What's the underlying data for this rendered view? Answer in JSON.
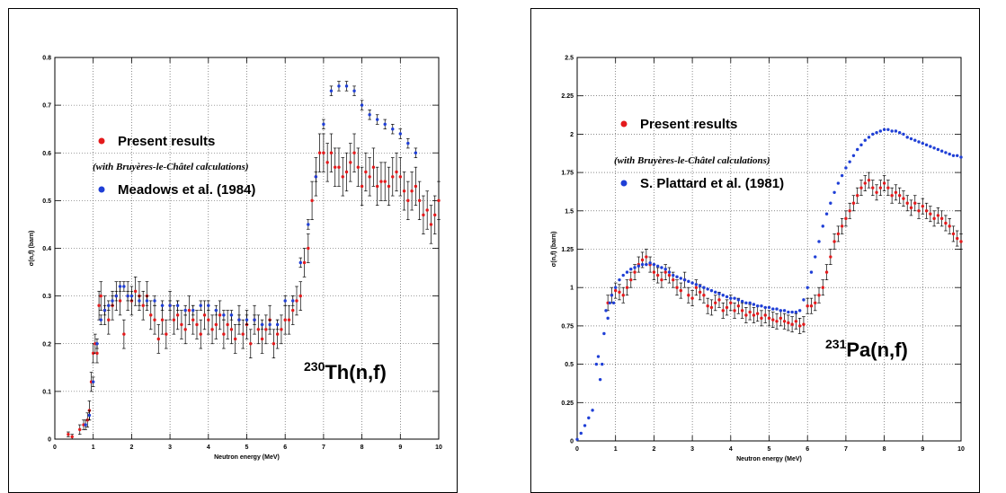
{
  "chart_data": [
    {
      "type": "scatter",
      "title": "",
      "reaction": {
        "mass": "230",
        "label": "Th(n,f)"
      },
      "xlabel": "Neutron energy (MeV)",
      "ylabel": "σ(n,f) (barn)",
      "xlim": [
        0,
        10
      ],
      "ylim": [
        0,
        0.8
      ],
      "xticks": [
        "0",
        "1",
        "2",
        "3",
        "4",
        "5",
        "6",
        "7",
        "8",
        "9",
        "10"
      ],
      "yticks": [
        "0",
        "0.1",
        "0.2",
        "0.3",
        "0.4",
        "0.5",
        "0.6",
        "0.7",
        "0.8"
      ],
      "grid": true,
      "legend_position": "middle-left",
      "legend_note": "(with Bruyères-le-Châtel calculations)",
      "series": [
        {
          "name": "Present results",
          "color": "#e41a1c",
          "x": [
            0.35,
            0.45,
            0.65,
            0.75,
            0.85,
            0.9,
            0.95,
            1.0,
            1.05,
            1.1,
            1.15,
            1.2,
            1.3,
            1.4,
            1.5,
            1.6,
            1.7,
            1.8,
            1.9,
            2.0,
            2.1,
            2.2,
            2.3,
            2.4,
            2.5,
            2.6,
            2.7,
            2.8,
            2.9,
            3.0,
            3.1,
            3.2,
            3.3,
            3.4,
            3.5,
            3.6,
            3.7,
            3.8,
            3.9,
            4.0,
            4.1,
            4.2,
            4.3,
            4.4,
            4.5,
            4.6,
            4.7,
            4.8,
            4.9,
            5.0,
            5.1,
            5.2,
            5.3,
            5.4,
            5.5,
            5.6,
            5.7,
            5.8,
            5.9,
            6.0,
            6.1,
            6.2,
            6.3,
            6.4,
            6.5,
            6.6,
            6.7,
            6.8,
            6.9,
            7.0,
            7.1,
            7.2,
            7.3,
            7.4,
            7.5,
            7.6,
            7.7,
            7.8,
            7.9,
            8.0,
            8.1,
            8.2,
            8.3,
            8.4,
            8.5,
            8.6,
            8.7,
            8.8,
            8.9,
            9.0,
            9.1,
            9.2,
            9.3,
            9.4,
            9.5,
            9.6,
            9.7,
            9.8,
            9.9,
            10.0
          ],
          "y": [
            0.01,
            0.005,
            0.02,
            0.03,
            0.04,
            0.06,
            0.12,
            0.18,
            0.2,
            0.18,
            0.28,
            0.3,
            0.27,
            0.25,
            0.28,
            0.3,
            0.29,
            0.22,
            0.3,
            0.29,
            0.31,
            0.3,
            0.28,
            0.3,
            0.26,
            0.25,
            0.21,
            0.25,
            0.22,
            0.28,
            0.25,
            0.26,
            0.24,
            0.23,
            0.27,
            0.25,
            0.24,
            0.22,
            0.26,
            0.25,
            0.23,
            0.24,
            0.26,
            0.22,
            0.24,
            0.23,
            0.21,
            0.25,
            0.22,
            0.24,
            0.2,
            0.25,
            0.23,
            0.21,
            0.23,
            0.25,
            0.2,
            0.22,
            0.23,
            0.25,
            0.25,
            0.27,
            0.29,
            0.3,
            0.37,
            0.4,
            0.5,
            0.55,
            0.6,
            0.6,
            0.58,
            0.6,
            0.57,
            0.57,
            0.55,
            0.56,
            0.58,
            0.6,
            0.57,
            0.53,
            0.56,
            0.55,
            0.57,
            0.53,
            0.54,
            0.54,
            0.53,
            0.55,
            0.56,
            0.55,
            0.52,
            0.5,
            0.52,
            0.53,
            0.5,
            0.47,
            0.48,
            0.45,
            0.47,
            0.5
          ],
          "err": [
            0.005,
            0.005,
            0.01,
            0.01,
            0.015,
            0.02,
            0.02,
            0.02,
            0.02,
            0.02,
            0.03,
            0.03,
            0.03,
            0.03,
            0.03,
            0.03,
            0.03,
            0.03,
            0.03,
            0.03,
            0.03,
            0.03,
            0.03,
            0.03,
            0.03,
            0.03,
            0.03,
            0.03,
            0.03,
            0.03,
            0.03,
            0.03,
            0.03,
            0.03,
            0.03,
            0.03,
            0.03,
            0.03,
            0.03,
            0.03,
            0.03,
            0.03,
            0.03,
            0.03,
            0.03,
            0.03,
            0.03,
            0.03,
            0.03,
            0.03,
            0.03,
            0.03,
            0.03,
            0.03,
            0.03,
            0.03,
            0.03,
            0.03,
            0.03,
            0.03,
            0.03,
            0.03,
            0.03,
            0.03,
            0.03,
            0.03,
            0.04,
            0.04,
            0.04,
            0.04,
            0.04,
            0.04,
            0.04,
            0.04,
            0.04,
            0.04,
            0.04,
            0.04,
            0.04,
            0.04,
            0.04,
            0.04,
            0.04,
            0.04,
            0.04,
            0.04,
            0.04,
            0.04,
            0.04,
            0.04,
            0.04,
            0.04,
            0.04,
            0.04,
            0.04,
            0.04,
            0.04,
            0.04,
            0.04,
            0.04
          ]
        },
        {
          "name": "Meadows et al. (1984)",
          "color": "#1f3fd6",
          "x": [
            0.8,
            0.9,
            1.0,
            1.1,
            1.2,
            1.3,
            1.4,
            1.5,
            1.6,
            1.7,
            1.8,
            1.9,
            2.0,
            2.2,
            2.4,
            2.6,
            2.8,
            3.0,
            3.2,
            3.4,
            3.6,
            3.8,
            4.0,
            4.2,
            4.4,
            4.6,
            4.8,
            5.0,
            5.2,
            5.4,
            5.6,
            5.8,
            6.0,
            6.2,
            6.4,
            6.6,
            6.8,
            7.0,
            7.2,
            7.4,
            7.6,
            7.8,
            8.0,
            8.2,
            8.4,
            8.6,
            8.8,
            9.0,
            9.2,
            9.4
          ],
          "y": [
            0.03,
            0.05,
            0.12,
            0.2,
            0.25,
            0.27,
            0.28,
            0.29,
            0.3,
            0.32,
            0.32,
            0.3,
            0.3,
            0.29,
            0.29,
            0.29,
            0.28,
            0.28,
            0.28,
            0.27,
            0.27,
            0.28,
            0.28,
            0.27,
            0.26,
            0.26,
            0.25,
            0.25,
            0.25,
            0.24,
            0.24,
            0.24,
            0.29,
            0.29,
            0.37,
            0.45,
            0.55,
            0.66,
            0.73,
            0.74,
            0.74,
            0.73,
            0.7,
            0.68,
            0.67,
            0.66,
            0.65,
            0.64,
            0.62,
            0.6
          ],
          "err": [
            0.01,
            0.01,
            0.01,
            0.01,
            0.01,
            0.01,
            0.01,
            0.01,
            0.01,
            0.01,
            0.01,
            0.01,
            0.01,
            0.01,
            0.01,
            0.01,
            0.01,
            0.01,
            0.01,
            0.01,
            0.01,
            0.01,
            0.01,
            0.01,
            0.01,
            0.01,
            0.01,
            0.01,
            0.01,
            0.01,
            0.01,
            0.01,
            0.01,
            0.01,
            0.01,
            0.01,
            0.01,
            0.01,
            0.01,
            0.01,
            0.01,
            0.01,
            0.01,
            0.01,
            0.01,
            0.01,
            0.01,
            0.01,
            0.01,
            0.01
          ]
        }
      ]
    },
    {
      "type": "scatter",
      "title": "",
      "reaction": {
        "mass": "231",
        "label": "Pa(n,f)"
      },
      "xlabel": "Neutron energy (MeV)",
      "ylabel": "σ(n,f) (barn)",
      "xlim": [
        0,
        10
      ],
      "ylim": [
        0,
        2.5
      ],
      "xticks": [
        "0",
        "1",
        "2",
        "3",
        "4",
        "5",
        "6",
        "7",
        "8",
        "9",
        "10"
      ],
      "yticks": [
        "0",
        "0.25",
        "0.5",
        "0.75",
        "1",
        "1.25",
        "1.5",
        "1.75",
        "2",
        "2.25",
        "2.5"
      ],
      "grid": true,
      "legend_position": "upper-left",
      "legend_note": "(with Bruyères-le-Châtel calculations)",
      "series": [
        {
          "name": "Present results",
          "color": "#e41a1c",
          "x": [
            0.8,
            0.9,
            1.0,
            1.1,
            1.2,
            1.3,
            1.4,
            1.5,
            1.6,
            1.7,
            1.8,
            1.9,
            2.0,
            2.1,
            2.2,
            2.3,
            2.4,
            2.5,
            2.6,
            2.7,
            2.8,
            2.9,
            3.0,
            3.1,
            3.2,
            3.3,
            3.4,
            3.5,
            3.6,
            3.7,
            3.8,
            3.9,
            4.0,
            4.1,
            4.2,
            4.3,
            4.4,
            4.5,
            4.6,
            4.7,
            4.8,
            4.9,
            5.0,
            5.1,
            5.2,
            5.3,
            5.4,
            5.5,
            5.6,
            5.7,
            5.8,
            5.9,
            6.0,
            6.1,
            6.2,
            6.3,
            6.4,
            6.5,
            6.6,
            6.7,
            6.8,
            6.9,
            7.0,
            7.1,
            7.2,
            7.3,
            7.4,
            7.5,
            7.6,
            7.7,
            7.8,
            7.9,
            8.0,
            8.1,
            8.2,
            8.3,
            8.4,
            8.5,
            8.6,
            8.7,
            8.8,
            8.9,
            9.0,
            9.1,
            9.2,
            9.3,
            9.4,
            9.5,
            9.6,
            9.7,
            9.8,
            9.9,
            10.0
          ],
          "y": [
            0.9,
            0.95,
            0.98,
            0.97,
            0.95,
            1.0,
            1.05,
            1.1,
            1.15,
            1.18,
            1.2,
            1.15,
            1.1,
            1.08,
            1.05,
            1.1,
            1.08,
            1.05,
            1.0,
            0.98,
            1.05,
            0.95,
            0.93,
            1.0,
            0.97,
            0.95,
            0.88,
            0.87,
            0.9,
            0.92,
            0.85,
            0.87,
            0.9,
            0.85,
            0.88,
            0.85,
            0.82,
            0.84,
            0.82,
            0.83,
            0.8,
            0.82,
            0.8,
            0.79,
            0.78,
            0.8,
            0.78,
            0.77,
            0.76,
            0.78,
            0.75,
            0.76,
            0.88,
            0.88,
            0.9,
            0.95,
            1.0,
            1.1,
            1.2,
            1.3,
            1.35,
            1.4,
            1.45,
            1.5,
            1.55,
            1.6,
            1.65,
            1.68,
            1.7,
            1.65,
            1.62,
            1.65,
            1.68,
            1.65,
            1.6,
            1.62,
            1.6,
            1.58,
            1.55,
            1.52,
            1.55,
            1.5,
            1.53,
            1.5,
            1.48,
            1.45,
            1.47,
            1.45,
            1.42,
            1.4,
            1.35,
            1.32,
            1.3
          ],
          "err": [
            0.05,
            0.05,
            0.05,
            0.05,
            0.05,
            0.05,
            0.05,
            0.05,
            0.05,
            0.05,
            0.05,
            0.05,
            0.05,
            0.05,
            0.05,
            0.05,
            0.05,
            0.05,
            0.05,
            0.05,
            0.05,
            0.05,
            0.05,
            0.05,
            0.05,
            0.05,
            0.05,
            0.05,
            0.05,
            0.05,
            0.05,
            0.05,
            0.05,
            0.05,
            0.05,
            0.05,
            0.05,
            0.05,
            0.05,
            0.05,
            0.05,
            0.05,
            0.05,
            0.05,
            0.05,
            0.05,
            0.05,
            0.05,
            0.05,
            0.05,
            0.05,
            0.05,
            0.05,
            0.05,
            0.05,
            0.05,
            0.05,
            0.05,
            0.05,
            0.05,
            0.05,
            0.05,
            0.05,
            0.05,
            0.05,
            0.05,
            0.05,
            0.05,
            0.05,
            0.05,
            0.05,
            0.05,
            0.05,
            0.05,
            0.05,
            0.05,
            0.05,
            0.05,
            0.05,
            0.05,
            0.05,
            0.05,
            0.05,
            0.05,
            0.05,
            0.05,
            0.05,
            0.05,
            0.05,
            0.05,
            0.05,
            0.05,
            0.05
          ]
        },
        {
          "name": "S. Plattard et al. (1981)",
          "color": "#1f3fd6",
          "x": [
            0.0,
            0.1,
            0.2,
            0.3,
            0.4,
            0.5,
            0.55,
            0.6,
            0.65,
            0.7,
            0.75,
            0.8,
            0.85,
            0.9,
            0.95,
            1.0,
            1.1,
            1.2,
            1.3,
            1.4,
            1.5,
            1.6,
            1.7,
            1.8,
            1.9,
            2.0,
            2.1,
            2.2,
            2.3,
            2.4,
            2.5,
            2.6,
            2.7,
            2.8,
            2.9,
            3.0,
            3.1,
            3.2,
            3.3,
            3.4,
            3.5,
            3.6,
            3.7,
            3.8,
            3.9,
            4.0,
            4.1,
            4.2,
            4.3,
            4.4,
            4.5,
            4.6,
            4.7,
            4.8,
            4.9,
            5.0,
            5.1,
            5.2,
            5.3,
            5.4,
            5.5,
            5.6,
            5.7,
            5.8,
            5.9,
            6.0,
            6.1,
            6.2,
            6.3,
            6.4,
            6.5,
            6.6,
            6.7,
            6.8,
            6.9,
            7.0,
            7.1,
            7.2,
            7.3,
            7.4,
            7.5,
            7.6,
            7.7,
            7.8,
            7.9,
            8.0,
            8.1,
            8.2,
            8.3,
            8.4,
            8.5,
            8.6,
            8.7,
            8.8,
            8.9,
            9.0,
            9.1,
            9.2,
            9.3,
            9.4,
            9.5,
            9.6,
            9.7,
            9.8,
            9.9,
            10.0
          ],
          "y": [
            0.01,
            0.05,
            0.1,
            0.15,
            0.2,
            0.5,
            0.55,
            0.4,
            0.5,
            0.7,
            0.85,
            0.8,
            0.9,
            0.95,
            0.9,
            1.0,
            1.05,
            1.08,
            1.1,
            1.12,
            1.13,
            1.14,
            1.15,
            1.15,
            1.16,
            1.15,
            1.14,
            1.13,
            1.12,
            1.1,
            1.08,
            1.07,
            1.06,
            1.05,
            1.04,
            1.03,
            1.02,
            1.01,
            1.0,
            0.99,
            0.98,
            0.97,
            0.96,
            0.95,
            0.94,
            0.93,
            0.93,
            0.92,
            0.91,
            0.9,
            0.9,
            0.89,
            0.88,
            0.88,
            0.87,
            0.87,
            0.86,
            0.86,
            0.85,
            0.85,
            0.84,
            0.84,
            0.84,
            0.85,
            0.92,
            1.0,
            1.1,
            1.2,
            1.3,
            1.4,
            1.48,
            1.55,
            1.62,
            1.68,
            1.73,
            1.78,
            1.82,
            1.86,
            1.9,
            1.93,
            1.96,
            1.98,
            2.0,
            2.01,
            2.02,
            2.03,
            2.03,
            2.02,
            2.02,
            2.01,
            2.0,
            1.98,
            1.97,
            1.96,
            1.95,
            1.94,
            1.93,
            1.92,
            1.91,
            1.9,
            1.89,
            1.88,
            1.87,
            1.86,
            1.86,
            1.85
          ],
          "err": []
        }
      ]
    }
  ]
}
